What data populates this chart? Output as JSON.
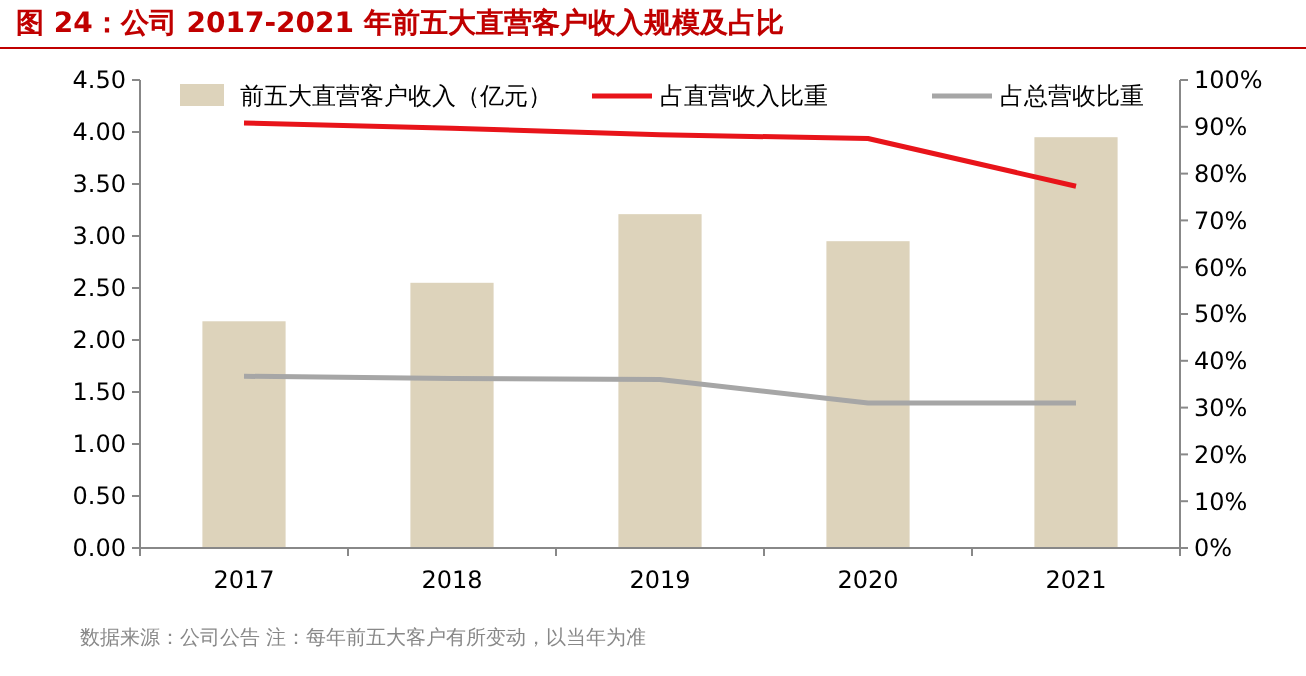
{
  "chart_data": {
    "type": "bar",
    "title": "图 24：公司 2017-2021 年前五大直营客户收入规模及占比",
    "categories": [
      "2017",
      "2018",
      "2019",
      "2020",
      "2021"
    ],
    "series": [
      {
        "name": "前五大直营客户收入（亿元）",
        "color": "#ddd3bb",
        "values": [
          2.18,
          2.55,
          3.21,
          2.95,
          3.95
        ]
      },
      {
        "name": "占直营收入比重",
        "type": "line",
        "axis": "y2",
        "color": "#e8141a",
        "values": [
          90.8,
          89.7,
          88.3,
          87.5,
          77.3
        ]
      },
      {
        "name": "占总营收比重",
        "type": "line",
        "axis": "y2",
        "color": "#a6a6a6",
        "values": [
          36.7,
          36.2,
          36,
          31,
          31
        ]
      }
    ],
    "ylim": [
      0,
      4.5
    ],
    "yticks": [
      {
        "value": 0,
        "label": "0.00"
      },
      {
        "value": 0.5,
        "label": "0.50"
      },
      {
        "value": 1,
        "label": "1.00"
      },
      {
        "value": 1.5,
        "label": "1.50"
      },
      {
        "value": 2,
        "label": "2.00"
      },
      {
        "value": 2.5,
        "label": "2.50"
      },
      {
        "value": 3,
        "label": "3.00"
      },
      {
        "value": 3.5,
        "label": "3.50"
      },
      {
        "value": 4,
        "label": "4.00"
      },
      {
        "value": 4.5,
        "label": "4.50"
      }
    ],
    "y2lim": [
      0,
      100
    ],
    "y2ticks": [
      {
        "value": 0,
        "label": "0%"
      },
      {
        "value": 10,
        "label": "10%"
      },
      {
        "value": 20,
        "label": "20%"
      },
      {
        "value": 30,
        "label": "30%"
      },
      {
        "value": 40,
        "label": "40%"
      },
      {
        "value": 50,
        "label": "50%"
      },
      {
        "value": 60,
        "label": "60%"
      },
      {
        "value": 70,
        "label": "70%"
      },
      {
        "value": 80,
        "label": "80%"
      },
      {
        "value": 90,
        "label": "90%"
      },
      {
        "value": 100,
        "label": "100%"
      }
    ],
    "legend": "top",
    "grid": false,
    "annotations": [
      "数据来源：公司公告 注：每年前五大客户有所变动，以当年为准"
    ]
  }
}
